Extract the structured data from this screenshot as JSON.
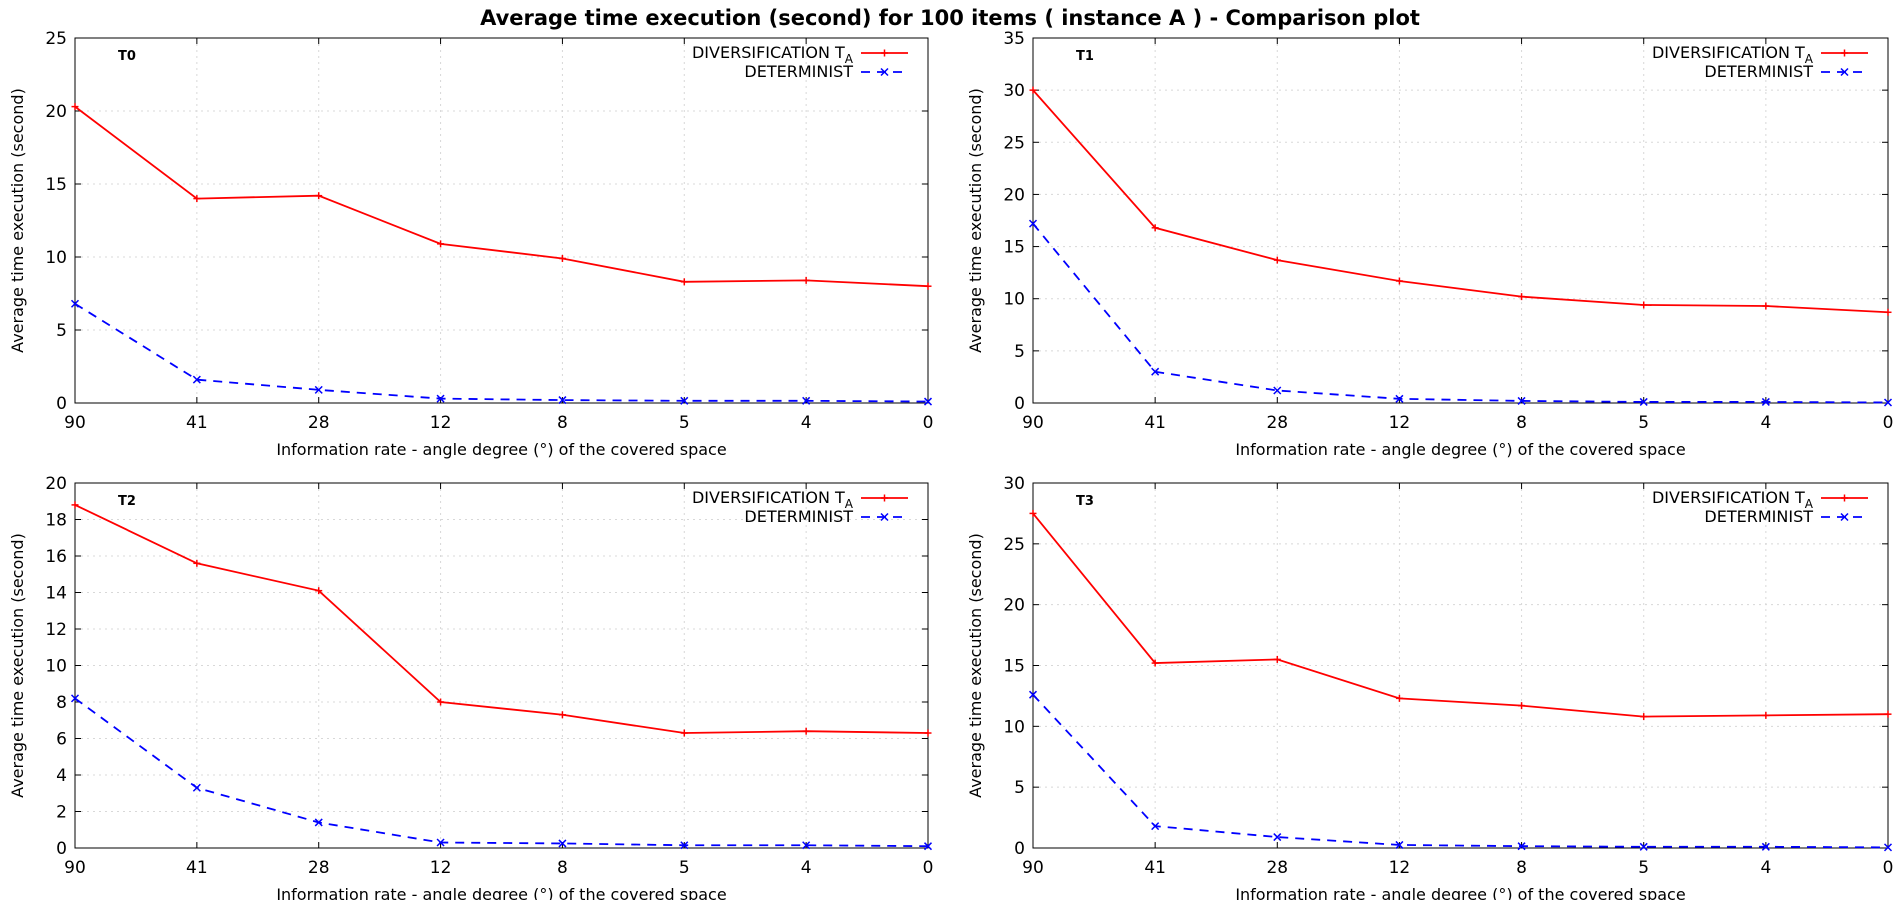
{
  "figure": {
    "title": "Average time execution (second) for 100 items ( instance A )  - Comparison plot"
  },
  "colors": {
    "diversification": "#ff0000",
    "determinist": "#0000ff"
  },
  "chart_data": [
    {
      "type": "line",
      "panel_label": "T0",
      "categories": [
        "90",
        "41",
        "28",
        "12",
        "8",
        "5",
        "4",
        "0"
      ],
      "xlabel": "Information rate - angle degree (°)  of the covered space",
      "ylabel": "Average time execution (second)",
      "ylim": [
        0,
        25
      ],
      "yticks": [
        0,
        5,
        10,
        15,
        20,
        25
      ],
      "grid": true,
      "legend_position": "top-right",
      "series": [
        {
          "name": "DIVERSIFICATION T",
          "name_subscript": "A",
          "style": "solid",
          "marker": "plus",
          "values": [
            20.3,
            14.0,
            14.2,
            10.9,
            9.9,
            8.3,
            8.4,
            8.0
          ]
        },
        {
          "name": "DETERMINIST",
          "style": "dashed",
          "marker": "x",
          "values": [
            6.8,
            1.6,
            0.9,
            0.3,
            0.2,
            0.15,
            0.15,
            0.1
          ]
        }
      ]
    },
    {
      "type": "line",
      "panel_label": "T1",
      "categories": [
        "90",
        "41",
        "28",
        "12",
        "8",
        "5",
        "4",
        "0"
      ],
      "xlabel": "Information rate - angle degree (°)  of the covered space",
      "ylabel": "Average time execution (second)",
      "ylim": [
        0,
        35
      ],
      "yticks": [
        0,
        5,
        10,
        15,
        20,
        25,
        30,
        35
      ],
      "grid": true,
      "legend_position": "top-right",
      "series": [
        {
          "name": "DIVERSIFICATION T",
          "name_subscript": "A",
          "style": "solid",
          "marker": "plus",
          "values": [
            30.0,
            16.8,
            13.7,
            11.7,
            10.2,
            9.4,
            9.3,
            8.7
          ]
        },
        {
          "name": "DETERMINIST",
          "style": "dashed",
          "marker": "x",
          "values": [
            17.2,
            3.0,
            1.2,
            0.4,
            0.2,
            0.1,
            0.1,
            0.05
          ]
        }
      ]
    },
    {
      "type": "line",
      "panel_label": "T2",
      "categories": [
        "90",
        "41",
        "28",
        "12",
        "8",
        "5",
        "4",
        "0"
      ],
      "xlabel": "Information rate - angle degree (°)  of the covered space",
      "ylabel": "Average time execution (second)",
      "ylim": [
        0,
        20
      ],
      "yticks": [
        0,
        2,
        4,
        6,
        8,
        10,
        12,
        14,
        16,
        18,
        20
      ],
      "grid": true,
      "legend_position": "top-right",
      "series": [
        {
          "name": "DIVERSIFICATION T",
          "name_subscript": "A",
          "style": "solid",
          "marker": "plus",
          "values": [
            18.8,
            15.6,
            14.1,
            8.0,
            7.3,
            6.3,
            6.4,
            6.3
          ]
        },
        {
          "name": "DETERMINIST",
          "style": "dashed",
          "marker": "x",
          "values": [
            8.2,
            3.3,
            1.4,
            0.3,
            0.25,
            0.15,
            0.15,
            0.1
          ]
        }
      ]
    },
    {
      "type": "line",
      "panel_label": "T3",
      "categories": [
        "90",
        "41",
        "28",
        "12",
        "8",
        "5",
        "4",
        "0"
      ],
      "xlabel": "Information rate - angle degree (°)  of the covered space",
      "ylabel": "Average time execution (second)",
      "ylim": [
        0,
        30
      ],
      "yticks": [
        0,
        5,
        10,
        15,
        20,
        25,
        30
      ],
      "grid": true,
      "legend_position": "top-right",
      "series": [
        {
          "name": "DIVERSIFICATION T",
          "name_subscript": "A",
          "style": "solid",
          "marker": "plus",
          "values": [
            27.5,
            15.2,
            15.5,
            12.3,
            11.7,
            10.8,
            10.9,
            11.0
          ]
        },
        {
          "name": "DETERMINIST",
          "style": "dashed",
          "marker": "x",
          "values": [
            12.6,
            1.8,
            0.9,
            0.25,
            0.15,
            0.1,
            0.1,
            0.05
          ]
        }
      ]
    }
  ]
}
